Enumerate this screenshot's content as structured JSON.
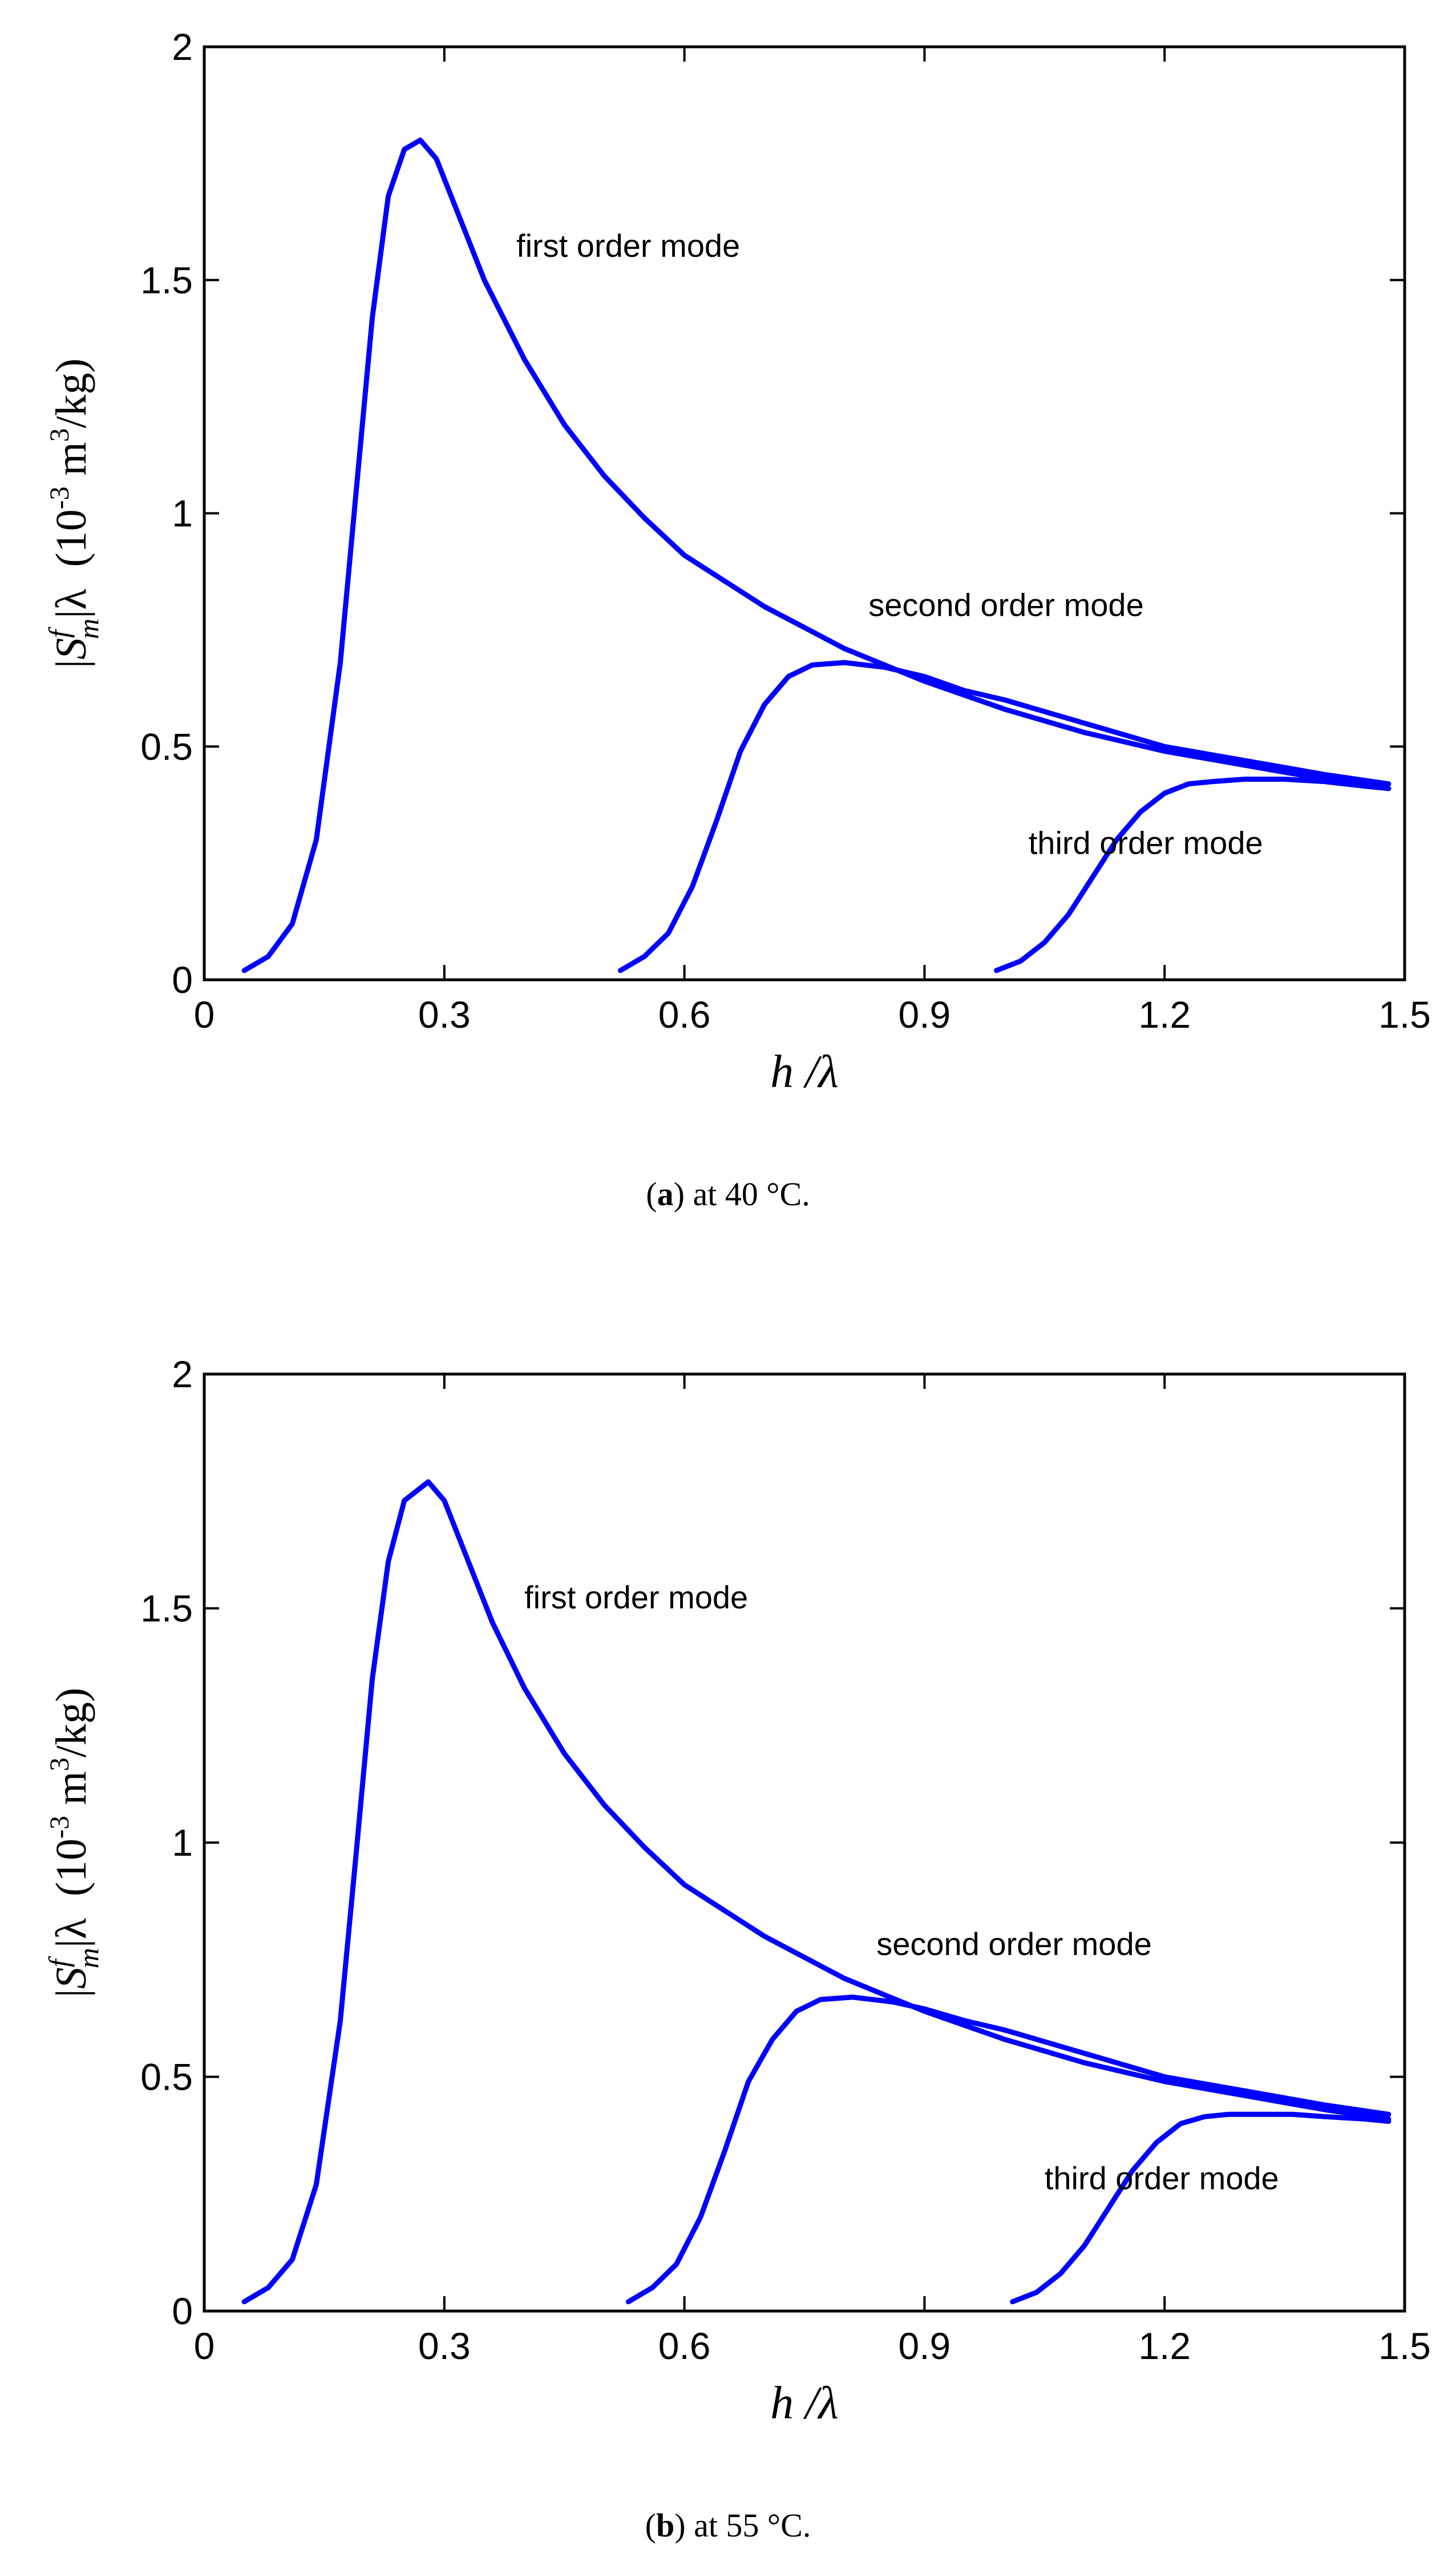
{
  "chart_data": [
    {
      "type": "line",
      "xlabel": "h /λ",
      "ylabel_parts": {
        "open": "|",
        "S": "S",
        "sup_f": "f",
        "sub_m": "m",
        "close_lambda": "|λ",
        "unit_open": "(10",
        "exp": "-3",
        "unit_mid": " m",
        "exp3": "3",
        "unit_end": "/kg)"
      },
      "xlim": [
        0,
        1.5
      ],
      "ylim": [
        0,
        2
      ],
      "x_ticks": [
        "0",
        "0.3",
        "0.6",
        "0.9",
        "1.2",
        "1.5"
      ],
      "y_ticks": [
        "0",
        "0.5",
        "1",
        "1.5",
        "2"
      ],
      "caption": {
        "letter": "a",
        "paren_open": "(",
        "paren_close": ")",
        "text": " at 40 °C."
      },
      "color": "#0000ff",
      "annotations": [
        {
          "text": "first order mode",
          "x": 0.39,
          "y": 1.55
        },
        {
          "text": "second order mode",
          "x": 0.83,
          "y": 0.78
        },
        {
          "text": "third order mode",
          "x": 1.03,
          "y": 0.27
        }
      ],
      "series": [
        {
          "name": "first order mode",
          "x": [
            0.05,
            0.08,
            0.11,
            0.14,
            0.17,
            0.19,
            0.21,
            0.23,
            0.25,
            0.27,
            0.29,
            0.32,
            0.35,
            0.4,
            0.45,
            0.5,
            0.55,
            0.6,
            0.7,
            0.8,
            0.9,
            1.0,
            1.1,
            1.2,
            1.3,
            1.4,
            1.48
          ],
          "y": [
            0.02,
            0.05,
            0.12,
            0.3,
            0.68,
            1.05,
            1.42,
            1.68,
            1.78,
            1.8,
            1.76,
            1.63,
            1.5,
            1.33,
            1.19,
            1.08,
            0.99,
            0.91,
            0.8,
            0.71,
            0.64,
            0.58,
            0.53,
            0.49,
            0.46,
            0.43,
            0.41
          ]
        },
        {
          "name": "second order mode",
          "x": [
            0.52,
            0.55,
            0.58,
            0.61,
            0.64,
            0.67,
            0.7,
            0.73,
            0.76,
            0.8,
            0.85,
            0.9,
            0.95,
            1.0,
            1.1,
            1.2,
            1.3,
            1.4,
            1.48
          ],
          "y": [
            0.02,
            0.05,
            0.1,
            0.2,
            0.34,
            0.49,
            0.59,
            0.65,
            0.675,
            0.68,
            0.67,
            0.65,
            0.62,
            0.6,
            0.55,
            0.5,
            0.47,
            0.44,
            0.42
          ]
        },
        {
          "name": "third order mode",
          "x": [
            0.99,
            1.02,
            1.05,
            1.08,
            1.11,
            1.14,
            1.17,
            1.2,
            1.23,
            1.26,
            1.3,
            1.35,
            1.4,
            1.45,
            1.48
          ],
          "y": [
            0.02,
            0.04,
            0.08,
            0.14,
            0.22,
            0.3,
            0.36,
            0.4,
            0.42,
            0.425,
            0.43,
            0.43,
            0.425,
            0.415,
            0.41
          ]
        }
      ]
    },
    {
      "type": "line",
      "xlabel": "h /λ",
      "ylabel_parts": {
        "open": "|",
        "S": "S",
        "sup_f": "f",
        "sub_m": "m",
        "close_lambda": "|λ",
        "unit_open": "(10",
        "exp": "-3",
        "unit_mid": " m",
        "exp3": "3",
        "unit_end": "/kg)"
      },
      "xlim": [
        0,
        1.5
      ],
      "ylim": [
        0,
        2
      ],
      "x_ticks": [
        "0",
        "0.3",
        "0.6",
        "0.9",
        "1.2",
        "1.5"
      ],
      "y_ticks": [
        "0",
        "0.5",
        "1",
        "1.5",
        "2"
      ],
      "caption": {
        "letter": "b",
        "paren_open": "(",
        "paren_close": ")",
        "text": " at 55 °C."
      },
      "color": "#0000ff",
      "annotations": [
        {
          "text": "first order mode",
          "x": 0.4,
          "y": 1.5
        },
        {
          "text": "second order mode",
          "x": 0.84,
          "y": 0.76
        },
        {
          "text": "third order mode",
          "x": 1.05,
          "y": 0.26
        }
      ],
      "series": [
        {
          "name": "first order mode",
          "x": [
            0.05,
            0.08,
            0.11,
            0.14,
            0.17,
            0.19,
            0.21,
            0.23,
            0.25,
            0.28,
            0.3,
            0.33,
            0.36,
            0.4,
            0.45,
            0.5,
            0.55,
            0.6,
            0.7,
            0.8,
            0.9,
            1.0,
            1.1,
            1.2,
            1.3,
            1.4,
            1.48
          ],
          "y": [
            0.02,
            0.05,
            0.11,
            0.27,
            0.62,
            0.98,
            1.35,
            1.6,
            1.73,
            1.77,
            1.73,
            1.6,
            1.47,
            1.33,
            1.19,
            1.08,
            0.99,
            0.91,
            0.8,
            0.71,
            0.64,
            0.58,
            0.53,
            0.49,
            0.46,
            0.43,
            0.41
          ]
        },
        {
          "name": "second order mode",
          "x": [
            0.53,
            0.56,
            0.59,
            0.62,
            0.65,
            0.68,
            0.71,
            0.74,
            0.77,
            0.81,
            0.86,
            0.9,
            0.95,
            1.0,
            1.1,
            1.2,
            1.3,
            1.4,
            1.48
          ],
          "y": [
            0.02,
            0.05,
            0.1,
            0.2,
            0.34,
            0.49,
            0.58,
            0.64,
            0.665,
            0.67,
            0.66,
            0.645,
            0.62,
            0.6,
            0.55,
            0.5,
            0.47,
            0.44,
            0.42
          ]
        },
        {
          "name": "third order mode",
          "x": [
            1.01,
            1.04,
            1.07,
            1.1,
            1.13,
            1.16,
            1.19,
            1.22,
            1.25,
            1.28,
            1.32,
            1.36,
            1.4,
            1.45,
            1.48
          ],
          "y": [
            0.02,
            0.04,
            0.08,
            0.14,
            0.22,
            0.3,
            0.36,
            0.4,
            0.415,
            0.42,
            0.42,
            0.42,
            0.415,
            0.41,
            0.405
          ]
        }
      ]
    }
  ]
}
